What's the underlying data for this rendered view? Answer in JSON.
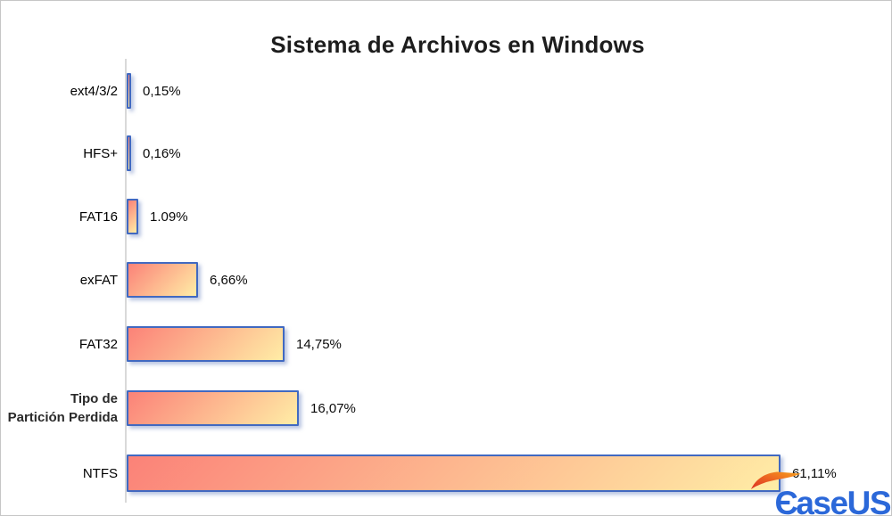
{
  "title": "Sistema de Archivos en Windows",
  "chart_data": {
    "type": "bar",
    "orientation": "horizontal",
    "title": "Sistema de Archivos en Windows",
    "categories": [
      "ext4/3/2",
      "HFS+",
      "FAT16",
      "exFAT",
      "FAT32",
      "Tipo de Partición Perdida",
      "NTFS"
    ],
    "display_categories": [
      "ext4/3/2",
      "HFS+",
      "FAT16",
      "exFAT",
      "FAT32",
      "Tipo de\nPartición Perdida",
      "NTFS"
    ],
    "values": [
      0.15,
      0.16,
      1.09,
      6.66,
      14.75,
      16.07,
      61.11
    ],
    "value_labels": [
      "0,15%",
      "0,16%",
      "1.09%",
      "6,66%",
      "14,75%",
      "16,07%",
      "61,11%"
    ],
    "unit": "%",
    "xlim": [
      0,
      70
    ],
    "grid": false,
    "legend": false,
    "bar_style": {
      "gradient_start": "#fb8278",
      "gradient_end": "#ffeda6",
      "border": "#4169c1",
      "shadow": "#9fb3d9"
    },
    "axis_color": "#d9d9d9",
    "title_color": "#1d1d1d"
  },
  "logo": {
    "brand": "EaseUS",
    "glyph": "Є",
    "rest": "aseUS",
    "blue": "#2b68d9",
    "orange_start": "#dc2f23",
    "orange_end": "#f6a01b"
  }
}
